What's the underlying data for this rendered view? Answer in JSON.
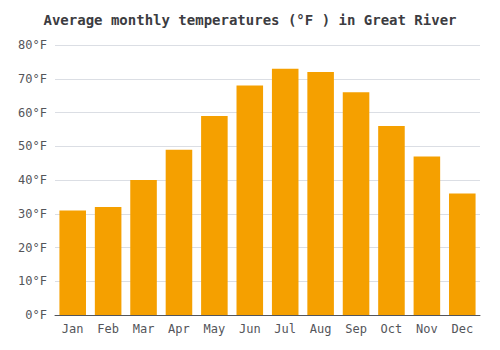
{
  "chart_data": {
    "type": "bar",
    "title": "Average monthly temperatures (°F ) in Great River",
    "categories": [
      "Jan",
      "Feb",
      "Mar",
      "Apr",
      "May",
      "Jun",
      "Jul",
      "Aug",
      "Sep",
      "Oct",
      "Nov",
      "Dec"
    ],
    "values": [
      31,
      32,
      40,
      49,
      59,
      68,
      73,
      72,
      66,
      56,
      47,
      36
    ],
    "color": "#F5A000",
    "ylim": [
      0,
      80
    ],
    "yticks": [
      {
        "value": 0,
        "label": "0°F"
      },
      {
        "value": 10,
        "label": "10°F"
      },
      {
        "value": 20,
        "label": "20°F"
      },
      {
        "value": 30,
        "label": "30°F"
      },
      {
        "value": 40,
        "label": "40°F"
      },
      {
        "value": 50,
        "label": "50°F"
      },
      {
        "value": 60,
        "label": "60°F"
      },
      {
        "value": 70,
        "label": "70°F"
      },
      {
        "value": 80,
        "label": "80°F"
      }
    ],
    "grid": true
  }
}
